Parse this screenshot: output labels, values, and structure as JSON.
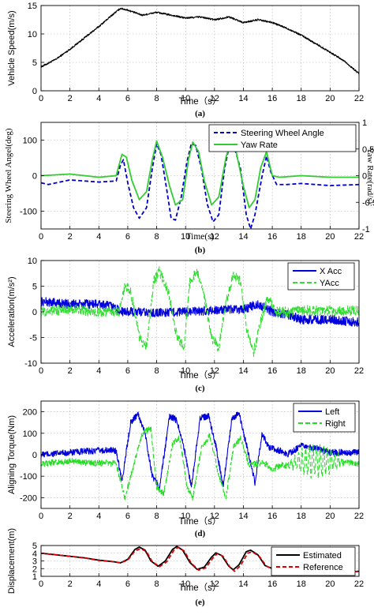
{
  "chart_data": [
    {
      "type": "line",
      "xlabel": "Time（s）",
      "ylabel": "Vehicle Speed(m/s)",
      "caption": "(a)",
      "xlim": [
        0,
        22
      ],
      "ylim": [
        0,
        15
      ],
      "xticks": [
        0,
        2,
        4,
        6,
        8,
        10,
        12,
        14,
        16,
        18,
        20,
        22
      ],
      "yticks": [
        0,
        5,
        10,
        15
      ],
      "grid": true,
      "series": [
        {
          "color": "#000000",
          "noise": 0.15,
          "x": [
            0,
            1,
            2,
            3,
            4,
            5,
            5.5,
            6,
            7,
            8,
            9,
            10,
            11,
            12,
            13,
            14,
            15,
            16,
            17,
            18,
            19,
            20,
            21,
            22
          ],
          "y": [
            4.2,
            5.5,
            7.3,
            9.3,
            11.3,
            13.5,
            14.5,
            14.2,
            13.3,
            13.8,
            13.3,
            12.8,
            13.0,
            12.5,
            13.0,
            12.0,
            12.5,
            12.0,
            11.0,
            9.8,
            8.3,
            6.8,
            5.2,
            3.0
          ]
        }
      ]
    },
    {
      "type": "line",
      "xlabel": "Time(s)",
      "ylabel": "Steering Wheel Angel(deg)",
      "y2label": "Yaw Rate(rad/s)",
      "caption": "(b)",
      "xlim": [
        0,
        22
      ],
      "ylim": [
        -150,
        150
      ],
      "y2lim": [
        -1,
        1
      ],
      "xticks": [
        0,
        2,
        4,
        6,
        8,
        10,
        12,
        14,
        16,
        18,
        20,
        22
      ],
      "yticks": [
        -100,
        0,
        100
      ],
      "y2ticks": [
        -1,
        -0.5,
        0,
        0.5,
        1
      ],
      "grid": true,
      "legend_position": "top-right",
      "series": [
        {
          "name": "Steering Wheel Angle",
          "color": "#0000cc",
          "dash": "5,3",
          "x": [
            0,
            0.5,
            2,
            4,
            5.2,
            5.5,
            5.7,
            6.0,
            6.4,
            6.8,
            7.3,
            7.7,
            8.0,
            8.3,
            8.7,
            9.0,
            9.3,
            9.7,
            10.1,
            10.4,
            10.7,
            11.1,
            11.5,
            11.9,
            12.3,
            12.7,
            13.0,
            13.3,
            13.8,
            14.2,
            14.5,
            14.8,
            15.3,
            15.6,
            15.9,
            16.3,
            17,
            18,
            20,
            22
          ],
          "y": [
            -20,
            -25,
            -12,
            -18,
            -15,
            30,
            45,
            -20,
            -90,
            -120,
            -90,
            20,
            90,
            60,
            -40,
            -120,
            -125,
            -60,
            40,
            90,
            85,
            20,
            -80,
            -130,
            -110,
            20,
            80,
            90,
            20,
            -110,
            -150,
            -110,
            0,
            55,
            10,
            -25,
            -25,
            -22,
            -28,
            -25
          ]
        },
        {
          "name": "Yaw Rate",
          "color": "#33cc33",
          "axis": "right",
          "x": [
            0,
            2,
            4,
            5.2,
            5.6,
            5.9,
            6.3,
            6.8,
            7.3,
            7.7,
            8.0,
            8.4,
            8.9,
            9.3,
            9.8,
            10.2,
            10.5,
            10.9,
            11.3,
            11.8,
            12.3,
            12.8,
            13.1,
            13.5,
            14.0,
            14.4,
            14.8,
            15.2,
            15.6,
            16.0,
            16.5,
            18,
            20,
            22
          ],
          "y": [
            0.0,
            0.03,
            -0.03,
            0.0,
            0.4,
            0.35,
            -0.1,
            -0.45,
            -0.3,
            0.3,
            0.65,
            0.35,
            -0.2,
            -0.55,
            -0.45,
            0.3,
            0.63,
            0.45,
            -0.1,
            -0.55,
            -0.4,
            0.35,
            0.6,
            0.45,
            -0.2,
            -0.6,
            -0.45,
            0.15,
            0.45,
            0.0,
            -0.03,
            0.0,
            -0.03,
            -0.03
          ]
        }
      ]
    },
    {
      "type": "line",
      "xlabel": "Time（s）",
      "ylabel": "Acceleration(m/s²)",
      "caption": "(c)",
      "xlim": [
        0,
        22
      ],
      "ylim": [
        -10,
        10
      ],
      "xticks": [
        0,
        2,
        4,
        6,
        8,
        10,
        12,
        14,
        16,
        18,
        20,
        22
      ],
      "yticks": [
        -10,
        -5,
        0,
        5,
        10
      ],
      "grid": true,
      "legend_position": "top-right",
      "series": [
        {
          "name": "X Acc",
          "color": "#0000dd",
          "noise": 0.9,
          "x": [
            0,
            2,
            4,
            5,
            5.5,
            6,
            8,
            10,
            12,
            14,
            15,
            16,
            17,
            18,
            20,
            22
          ],
          "y": [
            2,
            1.5,
            1.5,
            1.0,
            0.0,
            0.0,
            -0.2,
            0.0,
            0.3,
            0.5,
            1.5,
            0.0,
            -0.5,
            -1.5,
            -1.5,
            -2.0
          ]
        },
        {
          "name": "YAcc",
          "color": "#33dd33",
          "dash": "6,3",
          "noise": 1.0,
          "x": [
            0,
            2,
            4,
            5.4,
            5.8,
            6.2,
            6.8,
            7.3,
            7.8,
            8.2,
            8.8,
            9.4,
            9.9,
            10.3,
            10.8,
            11.3,
            11.8,
            12.3,
            12.8,
            13.3,
            13.8,
            14.2,
            14.7,
            15.2,
            15.7,
            16.2,
            17,
            18,
            20,
            22
          ],
          "y": [
            0,
            0.5,
            0,
            0,
            5,
            4,
            -5,
            -7,
            6,
            8,
            4,
            -5,
            -7,
            6,
            8,
            3,
            -5,
            -7,
            2,
            7,
            6,
            -3,
            -8,
            -2,
            3,
            0,
            0,
            0.3,
            0.2,
            0.3
          ]
        }
      ]
    },
    {
      "type": "line",
      "xlabel": "Time（s）",
      "ylabel": "Aligning Torque(Nm)",
      "caption": "(d)",
      "xlim": [
        0,
        22
      ],
      "ylim": [
        -250,
        250
      ],
      "xticks": [
        0,
        2,
        4,
        6,
        8,
        10,
        12,
        14,
        16,
        18,
        20,
        22
      ],
      "yticks": [
        -200,
        -100,
        0,
        100,
        200
      ],
      "grid": true,
      "legend_position": "top-right",
      "series": [
        {
          "name": "Left",
          "color": "#0000dd",
          "noise": 15,
          "x": [
            0,
            2,
            4,
            5.2,
            5.6,
            6.2,
            6.7,
            7.2,
            7.7,
            8.2,
            8.9,
            9.4,
            9.9,
            10.4,
            11.0,
            11.6,
            12.1,
            12.6,
            13.2,
            13.7,
            14.2,
            14.8,
            15.3,
            15.8,
            16.5,
            17,
            18,
            19,
            20,
            21,
            22
          ],
          "y": [
            0,
            10,
            20,
            20,
            -120,
            150,
            190,
            100,
            -100,
            -150,
            180,
            160,
            30,
            -150,
            170,
            180,
            40,
            -150,
            170,
            190,
            50,
            -130,
            100,
            30,
            20,
            0,
            40,
            30,
            10,
            10,
            10
          ]
        },
        {
          "name": "Right",
          "color": "#22dd22",
          "dash": "6,3",
          "noise": 15,
          "x": [
            0,
            2,
            4,
            5.2,
            5.8,
            6.2,
            7.0,
            7.6,
            8.0,
            8.5,
            9.1,
            9.6,
            10.1,
            10.5,
            11.1,
            11.7,
            12.3,
            12.8,
            13.3,
            13.8,
            14.4,
            15.0,
            15.5,
            16.0,
            16.5,
            17,
            18,
            20,
            22
          ],
          "y": [
            -40,
            -30,
            -40,
            -40,
            -200,
            -100,
            100,
            120,
            -150,
            -180,
            50,
            80,
            -150,
            -200,
            30,
            90,
            -100,
            -200,
            30,
            80,
            -50,
            -40,
            -40,
            -70,
            -50,
            -50,
            -30,
            -30,
            -40
          ],
          "oscillation": {
            "from": 17,
            "to": 21,
            "amplitude": 70,
            "period": 0.25
          }
        }
      ]
    },
    {
      "type": "line",
      "xlabel": "Time（s）",
      "ylabel": "Displacement(m)",
      "caption": "(e)",
      "xlim": [
        0,
        22
      ],
      "ylim": [
        1,
        5
      ],
      "xticks": [
        0,
        2,
        4,
        6,
        8,
        10,
        12,
        14,
        16,
        18,
        20,
        22
      ],
      "yticks": [
        1,
        2,
        3,
        4,
        5
      ],
      "grid": true,
      "legend_position": "top-right",
      "series": [
        {
          "name": "Estimated",
          "color": "#000000",
          "x": [
            0,
            1,
            2,
            3,
            4,
            5,
            5.5,
            6.0,
            6.5,
            6.8,
            7.2,
            7.6,
            8.1,
            8.6,
            9.1,
            9.4,
            9.8,
            10.3,
            10.8,
            11.3,
            11.8,
            12.1,
            12.5,
            13.0,
            13.3,
            13.7,
            14.2,
            14.5,
            15.0,
            15.5,
            16.0,
            17,
            18,
            19,
            20,
            21,
            22
          ],
          "y": [
            4.0,
            3.8,
            3.6,
            3.4,
            3.1,
            2.9,
            2.75,
            3.2,
            4.5,
            4.8,
            4.4,
            3.0,
            2.3,
            3.0,
            4.5,
            4.88,
            4.4,
            2.8,
            1.9,
            2.2,
            3.5,
            4.05,
            3.7,
            2.3,
            1.85,
            2.5,
            4.2,
            4.4,
            3.8,
            2.4,
            2.0,
            1.85,
            1.75,
            1.6,
            1.55,
            1.55,
            1.65
          ]
        },
        {
          "name": "Reference",
          "color": "#dd0000",
          "dash": "5,3",
          "x": [
            0,
            1,
            2,
            3,
            4,
            5,
            5.5,
            6.0,
            6.5,
            6.9,
            7.3,
            7.7,
            8.2,
            8.7,
            9.2,
            9.5,
            9.9,
            10.4,
            10.9,
            11.4,
            11.9,
            12.2,
            12.6,
            13.1,
            13.4,
            13.8,
            14.3,
            14.6,
            15.1,
            15.6,
            16.1,
            17,
            18,
            19,
            20,
            21,
            22
          ],
          "y": [
            4.0,
            3.8,
            3.6,
            3.4,
            3.05,
            2.9,
            2.75,
            3.1,
            4.3,
            4.6,
            4.2,
            2.9,
            2.25,
            2.9,
            4.4,
            4.78,
            4.3,
            2.7,
            1.8,
            2.1,
            3.4,
            3.95,
            3.6,
            2.1,
            1.65,
            2.4,
            4.0,
            4.2,
            3.6,
            2.3,
            1.95,
            1.8,
            1.7,
            1.6,
            1.5,
            1.55,
            1.65
          ]
        }
      ]
    }
  ]
}
